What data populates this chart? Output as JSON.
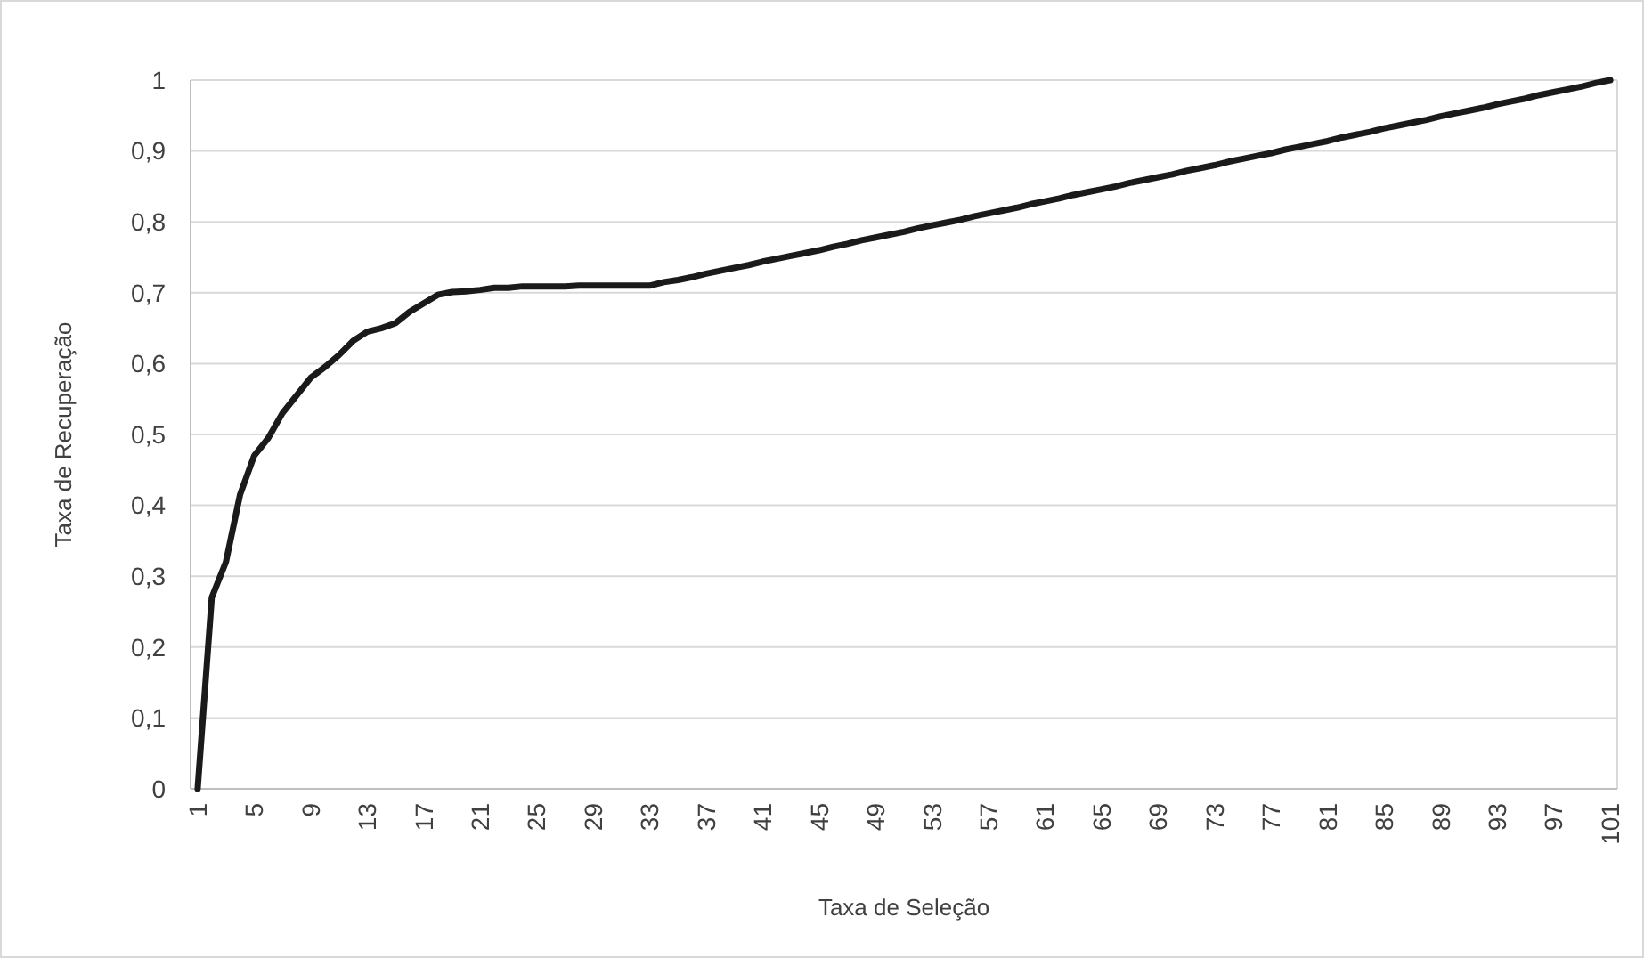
{
  "chart_data": {
    "type": "line",
    "xlabel": "Taxa de Seleção",
    "ylabel": "Taxa de Recuperação",
    "categories": [
      "1",
      null,
      null,
      null,
      "5",
      null,
      null,
      null,
      "9",
      null,
      null,
      null,
      "13",
      null,
      null,
      null,
      "17",
      null,
      null,
      null,
      "21",
      null,
      null,
      null,
      "25",
      null,
      null,
      null,
      "29",
      null,
      null,
      null,
      "33",
      null,
      null,
      null,
      "37",
      null,
      null,
      null,
      "41",
      null,
      null,
      null,
      "45",
      null,
      null,
      null,
      "49",
      null,
      null,
      null,
      "53",
      null,
      null,
      null,
      "57",
      null,
      null,
      null,
      "61",
      null,
      null,
      null,
      "65",
      null,
      null,
      null,
      "69",
      null,
      null,
      null,
      "73",
      null,
      null,
      null,
      "77",
      null,
      null,
      null,
      "81",
      null,
      null,
      null,
      "85",
      null,
      null,
      null,
      "89",
      null,
      null,
      null,
      "93",
      null,
      null,
      null,
      "97",
      null,
      null,
      null,
      "101"
    ],
    "series": [
      {
        "color": "#1a1a1a",
        "values": [
          0,
          0.27,
          0.32,
          0.415,
          0.47,
          0.495,
          0.53,
          0.555,
          0.58,
          0.595,
          0.612,
          0.632,
          0.645,
          0.65,
          0.657,
          0.673,
          0.685,
          0.697,
          0.701,
          0.702,
          0.704,
          0.707,
          0.707,
          0.709,
          0.709,
          0.709,
          0.709,
          0.71,
          0.71,
          0.71,
          0.71,
          0.71,
          0.71,
          0.715,
          0.718,
          0.722,
          0.727,
          0.731,
          0.735,
          0.739,
          0.744,
          0.748,
          0.752,
          0.756,
          0.76,
          0.765,
          0.769,
          0.774,
          0.778,
          0.782,
          0.786,
          0.791,
          0.795,
          0.799,
          0.803,
          0.808,
          0.812,
          0.816,
          0.82,
          0.825,
          0.829,
          0.833,
          0.838,
          0.842,
          0.846,
          0.85,
          0.855,
          0.859,
          0.863,
          0.867,
          0.872,
          0.876,
          0.88,
          0.885,
          0.889,
          0.893,
          0.897,
          0.902,
          0.906,
          0.91,
          0.914,
          0.919,
          0.923,
          0.927,
          0.932,
          0.936,
          0.94,
          0.944,
          0.949,
          0.953,
          0.957,
          0.961,
          0.966,
          0.97,
          0.974,
          0.979,
          0.983,
          0.987,
          0.991,
          0.996,
          1
        ]
      }
    ],
    "ylim": [
      0,
      1
    ],
    "yticks": [
      0,
      {
        "value": 0.1,
        "label": "0,1"
      },
      {
        "value": 0.2,
        "label": "0,2"
      },
      {
        "value": 0.3,
        "label": "0,3"
      },
      {
        "value": 0.4,
        "label": "0,4"
      },
      {
        "value": 0.5,
        "label": "0,5"
      },
      {
        "value": 0.6,
        "label": "0,6"
      },
      {
        "value": 0.7,
        "label": "0,7"
      },
      {
        "value": 0.8,
        "label": "0,8"
      },
      {
        "value": 0.9,
        "label": "0,9"
      },
      1
    ],
    "grid": "y",
    "marker": "none",
    "line_style": "solid"
  }
}
